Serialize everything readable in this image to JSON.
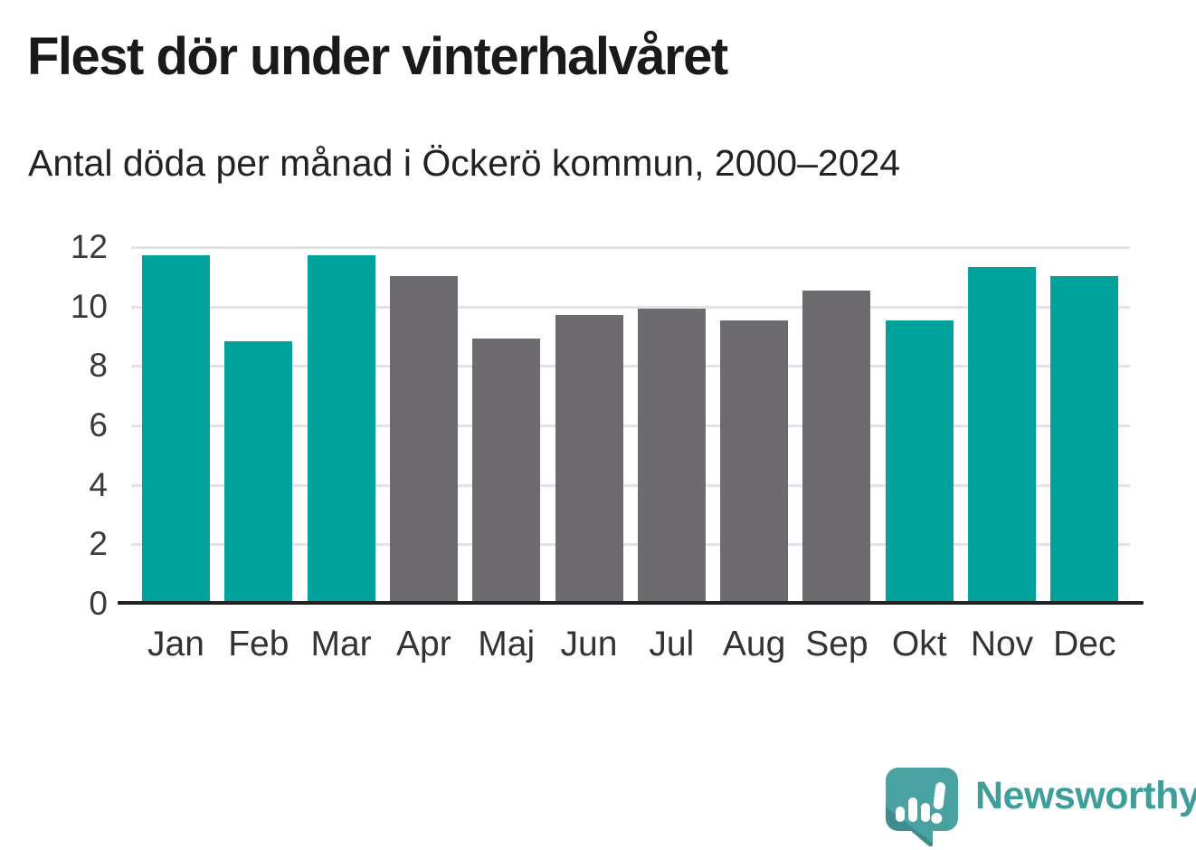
{
  "header": {
    "title": "Flest dör under vinterhalvåret",
    "subtitle": "Antal döda per månad i Öckerö kommun, 2000–2024"
  },
  "chart_data": {
    "type": "bar",
    "title": "Flest dör under vinterhalvåret",
    "subtitle": "Antal döda per månad i Öckerö kommun, 2000–2024",
    "categories": [
      "Jan",
      "Feb",
      "Mar",
      "Apr",
      "Maj",
      "Jun",
      "Jul",
      "Aug",
      "Sep",
      "Okt",
      "Nov",
      "Dec"
    ],
    "values": [
      11.7,
      8.8,
      11.7,
      11.0,
      8.9,
      9.7,
      9.9,
      9.5,
      10.5,
      9.5,
      11.3,
      11.0
    ],
    "bar_color_keys": [
      "winter",
      "winter",
      "winter",
      "summer",
      "summer",
      "summer",
      "summer",
      "summer",
      "summer",
      "winter",
      "winter",
      "winter"
    ],
    "palette": {
      "winter": "#00a39b",
      "summer": "#6d6a70"
    },
    "xlabel": "",
    "ylabel": "",
    "ylim": [
      0,
      12
    ],
    "yticks": [
      0,
      2,
      4,
      6,
      8,
      10,
      12
    ],
    "grid": true,
    "legend": false
  },
  "footer": {
    "brand": "Newsworthy"
  },
  "colors": {
    "accent_teal": "#00a39b",
    "bar_gray": "#6d6a70",
    "grid": "#e3e3e3",
    "axis": "#222222",
    "title_text": "#1a1a1a",
    "tick_text": "#333333",
    "logo_teal": "#3d9e9a",
    "logo_bubble": "#4aa1a1",
    "logo_bubble_dark": "#3e8c8d"
  }
}
